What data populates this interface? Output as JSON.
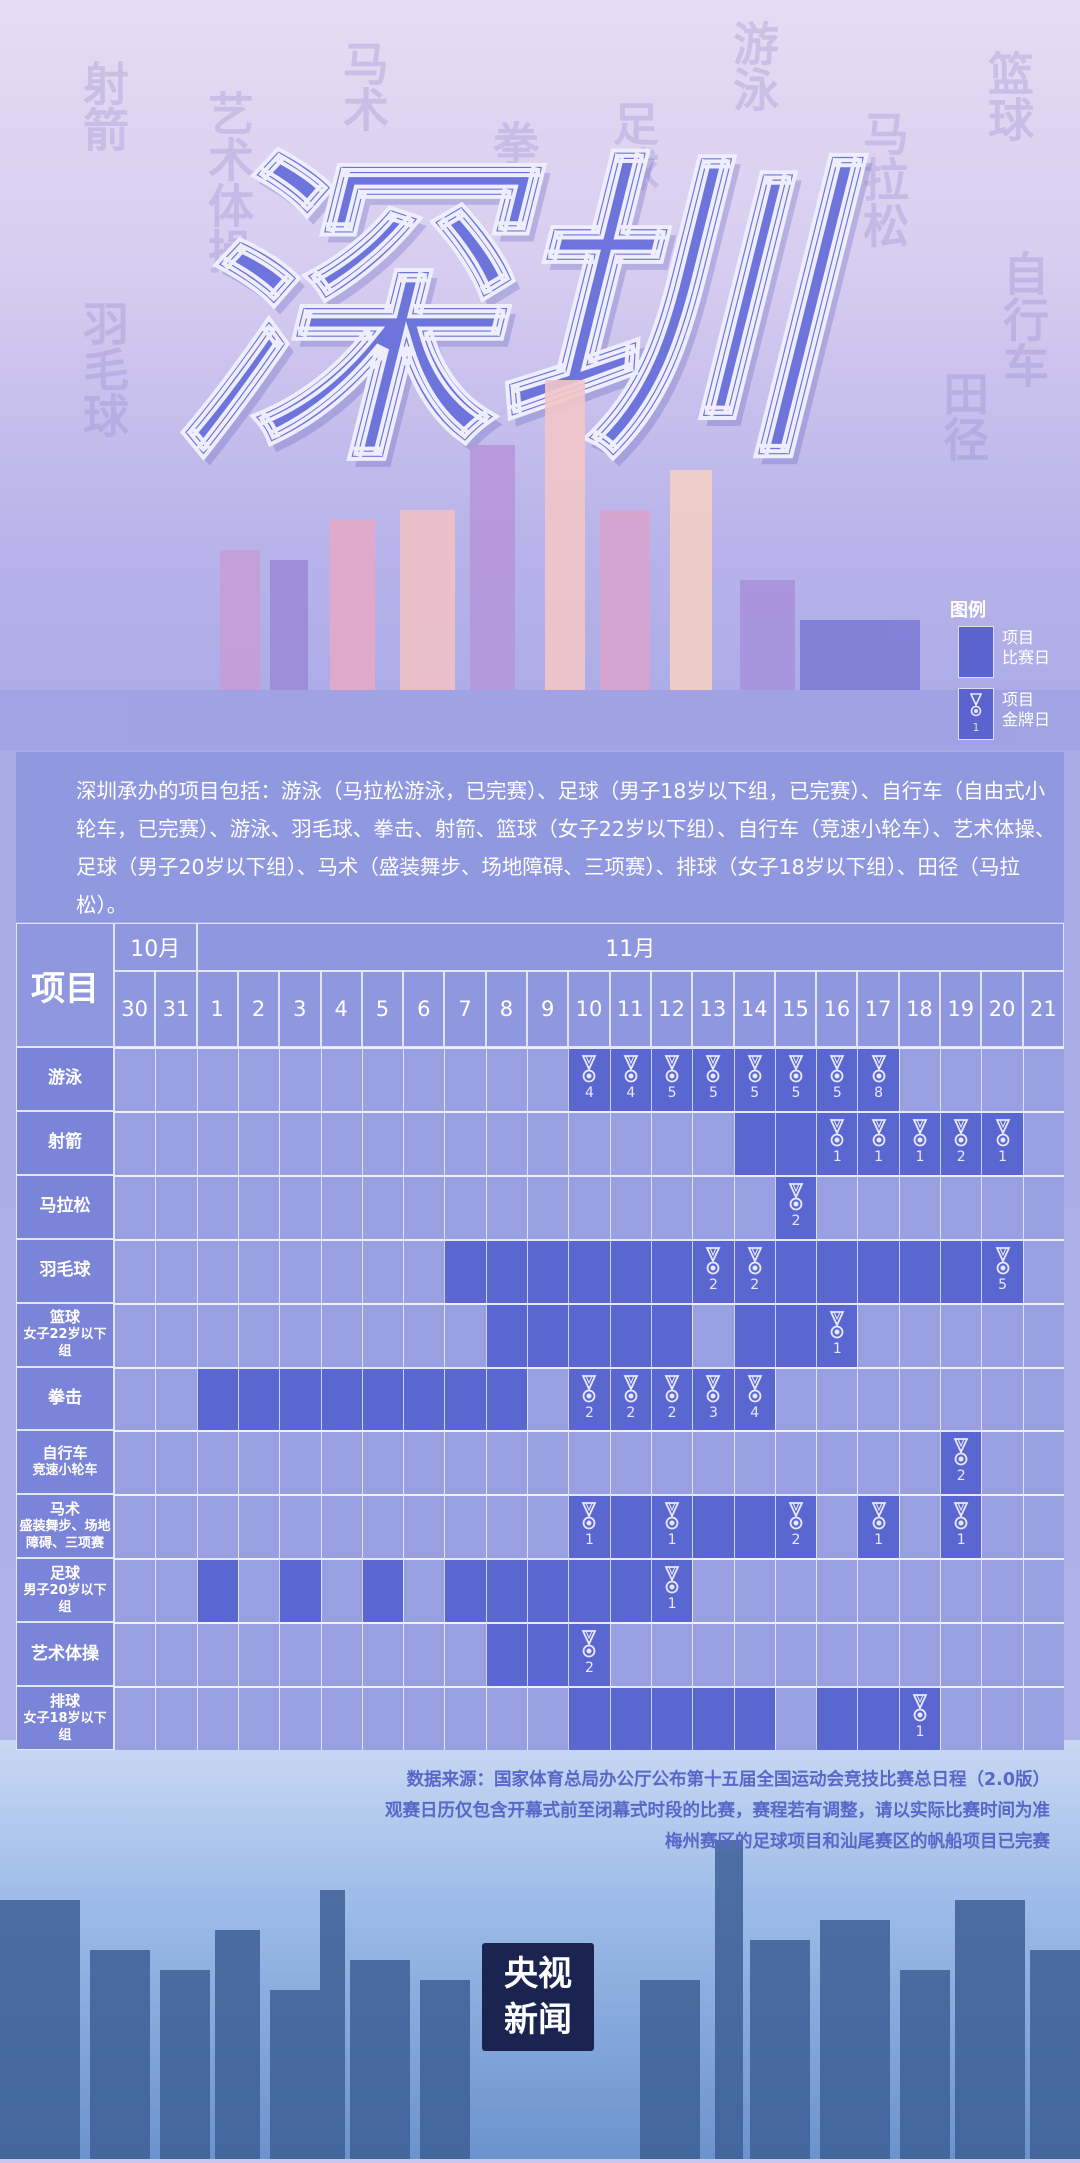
{
  "title": "深圳",
  "decorative_words": [
    "射箭",
    "艺术体操",
    "马术",
    "拳击",
    "足球",
    "游泳",
    "马拉松",
    "篮球",
    "自行车",
    "羽毛球",
    "田径"
  ],
  "legend": {
    "title": "图例",
    "event_day": [
      "项目",
      "比赛日"
    ],
    "medal_day": [
      "项目",
      "金牌日"
    ],
    "medal_sample": "1"
  },
  "intro": "深圳承办的项目包括：游泳（马拉松游泳，已完赛）、足球（男子18岁以下组，已完赛）、自行车（自由式小轮车，已完赛）、游泳、羽毛球、拳击、射箭、篮球（女子22岁以下组）、自行车（竞速小轮车）、艺术体操、足球（男子20岁以下组）、马术（盛装舞步、场地障碍、三项赛）、排球（女子18岁以下组）、田径（马拉松）。",
  "colors": {
    "event_day": "#5b67d0",
    "normal_day": "#98a0e2",
    "label_bg": "#7a84d8"
  },
  "table": {
    "header_label": "项目",
    "months": [
      {
        "label": "10月",
        "days": [
          "30",
          "31"
        ]
      },
      {
        "label": "11月",
        "days": [
          "1",
          "2",
          "3",
          "4",
          "5",
          "6",
          "7",
          "8",
          "9",
          "10",
          "11",
          "12",
          "13",
          "14",
          "15",
          "16",
          "17",
          "18",
          "19",
          "20",
          "21"
        ]
      }
    ],
    "rows": [
      {
        "label": [
          "游泳"
        ],
        "event_days": [
          "10",
          "11",
          "12",
          "13",
          "14",
          "15",
          "16",
          "17"
        ],
        "medals": {
          "10": "4",
          "11": "4",
          "12": "5",
          "13": "5",
          "14": "5",
          "15": "5",
          "16": "5",
          "17": "8"
        }
      },
      {
        "label": [
          "射箭"
        ],
        "event_days": [
          "14",
          "15",
          "16",
          "17",
          "18",
          "19",
          "20"
        ],
        "medals": {
          "16": "1",
          "17": "1",
          "18": "1",
          "19": "2",
          "20": "1"
        }
      },
      {
        "label": [
          "马拉松"
        ],
        "event_days": [
          "15"
        ],
        "medals": {
          "15": "2"
        }
      },
      {
        "label": [
          "羽毛球"
        ],
        "event_days": [
          "7",
          "8",
          "9",
          "10",
          "11",
          "12",
          "13",
          "14",
          "15",
          "16",
          "17",
          "18",
          "19",
          "20"
        ],
        "medals": {
          "13": "2",
          "14": "2",
          "20": "5"
        }
      },
      {
        "label": [
          "篮球",
          "女子22岁以下组"
        ],
        "event_days": [
          "8",
          "9",
          "10",
          "11",
          "12",
          "14",
          "15",
          "16"
        ],
        "medals": {
          "16": "1"
        }
      },
      {
        "label": [
          "拳击"
        ],
        "event_days": [
          "1",
          "2",
          "3",
          "4",
          "5",
          "6",
          "7",
          "8",
          "10",
          "11",
          "12",
          "13",
          "14"
        ],
        "medals": {
          "10": "2",
          "11": "2",
          "12": "2",
          "13": "3",
          "14": "4"
        }
      },
      {
        "label": [
          "自行车",
          "竞速小轮车"
        ],
        "event_days": [
          "19"
        ],
        "medals": {
          "19": "2"
        }
      },
      {
        "label": [
          "马术",
          "盛装舞步、场地",
          "障碍、三项赛"
        ],
        "event_days": [
          "10",
          "11",
          "12",
          "13",
          "14",
          "15",
          "17",
          "19"
        ],
        "medals": {
          "10": "1",
          "12": "1",
          "15": "2",
          "17": "1",
          "19": "1"
        }
      },
      {
        "label": [
          "足球",
          "男子20岁以下组"
        ],
        "event_days": [
          "1",
          "3",
          "5",
          "7",
          "8",
          "9",
          "10",
          "11",
          "12"
        ],
        "medals": {
          "12": "1"
        }
      },
      {
        "label": [
          "艺术体操"
        ],
        "event_days": [
          "8",
          "9",
          "10"
        ],
        "medals": {
          "10": "2"
        }
      },
      {
        "label": [
          "排球",
          "女子18岁以下组"
        ],
        "event_days": [
          "10",
          "11",
          "12",
          "13",
          "14",
          "16",
          "17",
          "18"
        ],
        "medals": {
          "18": "1"
        }
      }
    ]
  },
  "footer": [
    "数据来源：国家体育总局办公厅公布第十五届全国运动会竞技比赛总日程（2.0版）",
    "观赛日历仅包含开幕式前至闭幕式时段的比赛，赛程若有调整，请以实际比赛时间为准",
    "梅州赛区的足球项目和汕尾赛区的帆船项目已完赛"
  ],
  "logo": [
    "央视",
    "新闻"
  ]
}
